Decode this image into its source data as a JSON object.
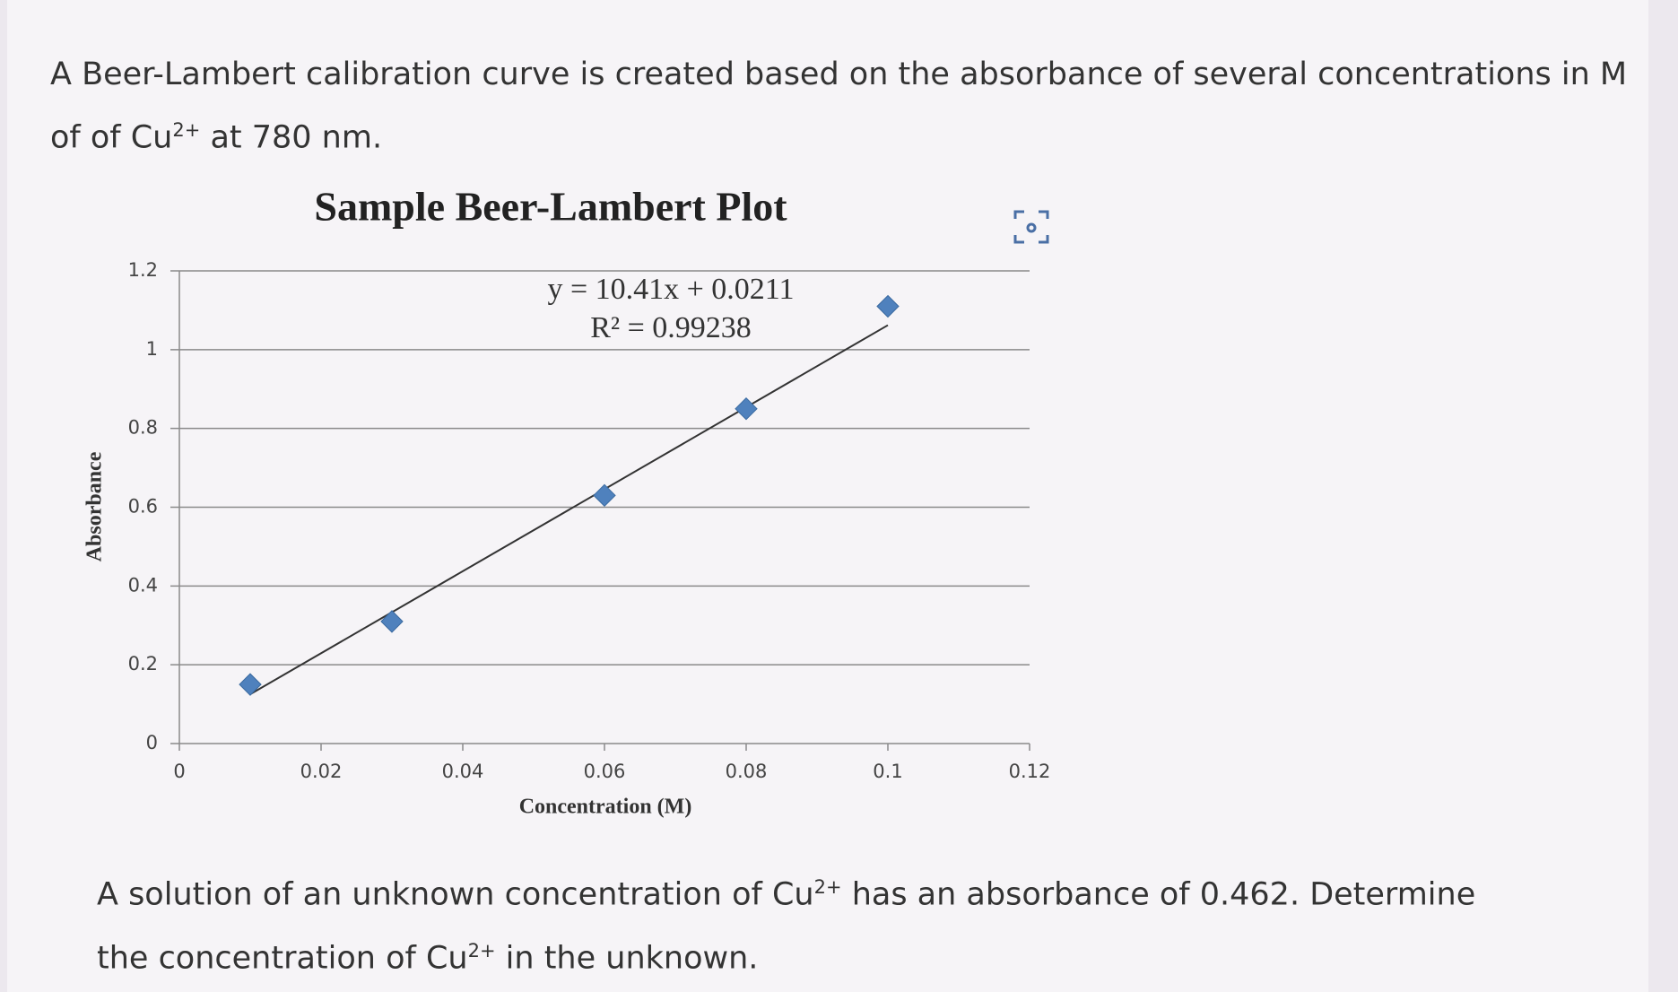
{
  "question": {
    "intro_parts": [
      "A Beer-Lambert calibration curve is created based on the absorbance of several concentrations in M of of Cu",
      "2+",
      " at 780 nm."
    ],
    "prompt_parts": [
      "A solution of an unknown concentration of Cu",
      "2+",
      " has an absorbance of 0.462. Determine the concentration of Cu",
      "2+",
      " in the unknown."
    ]
  },
  "chart_data": {
    "type": "scatter",
    "title": "Sample Beer-Lambert Plot",
    "x_label": "Concentration (M)",
    "y_label": "Absorbance",
    "x": [
      0.01,
      0.03,
      0.06,
      0.08,
      0.1
    ],
    "values": [
      0.15,
      0.31,
      0.63,
      0.85,
      1.11
    ],
    "color": "#4f81bd",
    "xlim": [
      0,
      0.12
    ],
    "xticks": [
      0,
      0.02,
      0.04,
      0.06,
      0.08,
      0.1,
      0.12
    ],
    "ylim": [
      0,
      1.2
    ],
    "yticks": [
      0,
      0.2,
      0.4,
      0.6,
      0.8,
      1,
      1.2
    ],
    "grid": true,
    "trendline": {
      "slope": 10.41,
      "intercept": 0.0211,
      "equation": "y = 10.41x + 0.0211",
      "r_squared": "R² = 0.99238"
    }
  }
}
